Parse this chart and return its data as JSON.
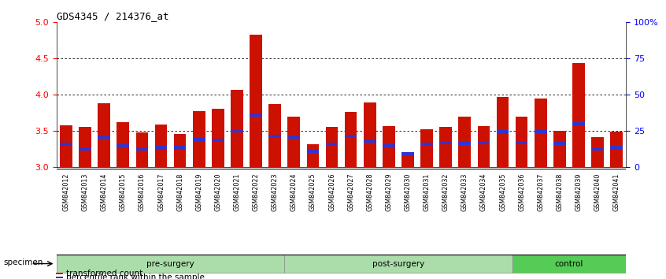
{
  "title": "GDS4345 / 214376_at",
  "samples": [
    "GSM842012",
    "GSM842013",
    "GSM842014",
    "GSM842015",
    "GSM842016",
    "GSM842017",
    "GSM842018",
    "GSM842019",
    "GSM842020",
    "GSM842021",
    "GSM842022",
    "GSM842023",
    "GSM842024",
    "GSM842025",
    "GSM842026",
    "GSM842027",
    "GSM842028",
    "GSM842029",
    "GSM842030",
    "GSM842031",
    "GSM842032",
    "GSM842033",
    "GSM842034",
    "GSM842035",
    "GSM842036",
    "GSM842037",
    "GSM842038",
    "GSM842039",
    "GSM842040",
    "GSM842041"
  ],
  "red_values": [
    3.58,
    3.56,
    3.88,
    3.62,
    3.48,
    3.59,
    3.46,
    3.78,
    3.81,
    4.07,
    4.83,
    3.87,
    3.7,
    3.32,
    3.56,
    3.76,
    3.9,
    3.57,
    3.18,
    3.53,
    3.56,
    3.7,
    3.57,
    3.97,
    3.7,
    3.95,
    3.5,
    4.44,
    3.42,
    3.49
  ],
  "blue_values": [
    3.32,
    3.25,
    3.42,
    3.3,
    3.25,
    3.27,
    3.27,
    3.38,
    3.37,
    3.5,
    3.72,
    3.43,
    3.42,
    3.22,
    3.32,
    3.43,
    3.36,
    3.3,
    3.19,
    3.32,
    3.34,
    3.33,
    3.34,
    3.49,
    3.34,
    3.49,
    3.33,
    3.6,
    3.25,
    3.27
  ],
  "groups": [
    {
      "label": "pre-surgery",
      "start": 0,
      "end": 12,
      "color": "#AAFFAA"
    },
    {
      "label": "post-surgery",
      "start": 12,
      "end": 24,
      "color": "#AAFFAA"
    },
    {
      "label": "control",
      "start": 24,
      "end": 30,
      "color": "#66EE66"
    }
  ],
  "ylim": [
    3.0,
    5.0
  ],
  "yticks_left": [
    3.0,
    3.5,
    4.0,
    4.5,
    5.0
  ],
  "yticks_right_pct": [
    0,
    25,
    50,
    75,
    100
  ],
  "bar_color": "#CC1100",
  "blue_color": "#3333CC",
  "legend_items": [
    {
      "label": "transformed count",
      "color": "#CC1100"
    },
    {
      "label": "percentile rank within the sample",
      "color": "#3333CC"
    }
  ],
  "xtick_bg_color": "#C8C8C8",
  "group_border_color": "#888888"
}
